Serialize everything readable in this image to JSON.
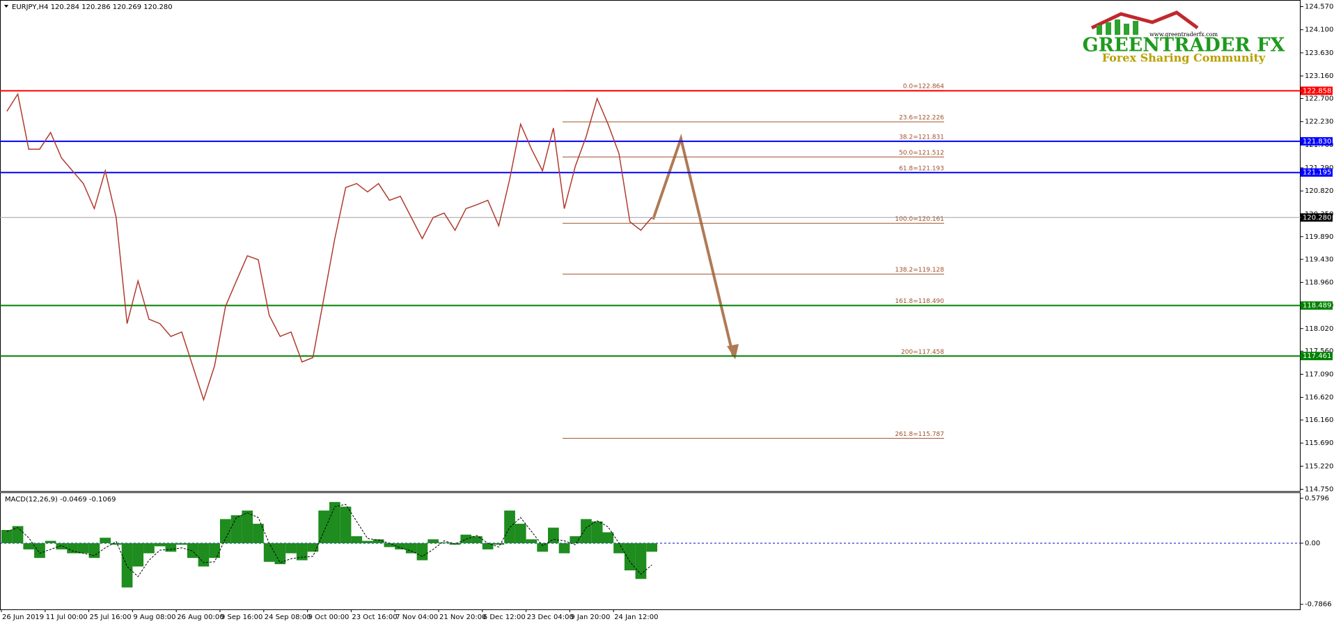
{
  "chart_data": [
    {
      "type": "line",
      "title": "EURJPY,H4  120.284 120.286 120.269 120.280",
      "categories": [
        "26 Jun 2019",
        null,
        null,
        null,
        "11 Jul 00:00",
        null,
        null,
        null,
        "25 Jul 16:00",
        null,
        null,
        null,
        "9 Aug 08:00",
        null,
        null,
        null,
        "26 Aug 00:00",
        null,
        null,
        null,
        "9 Sep 16:00",
        null,
        null,
        null,
        "24 Sep 08:00",
        null,
        null,
        null,
        "9 Oct 00:00",
        null,
        null,
        null,
        "23 Oct 16:00",
        null,
        null,
        null,
        "7 Nov 04:00",
        null,
        null,
        null,
        "21 Nov 20:00",
        null,
        null,
        null,
        "6 Dec 12:00",
        null,
        null,
        null,
        "23 Dec 04:00",
        null,
        null,
        null,
        "9 Jan 20:00",
        null,
        null,
        null,
        "24 Jan 12:00",
        null,
        null,
        null
      ],
      "values": [
        122.44,
        122.79,
        121.67,
        121.67,
        122.01,
        121.49,
        121.23,
        120.97,
        120.46,
        121.23,
        120.28,
        118.12,
        118.99,
        118.21,
        118.12,
        117.86,
        117.95,
        117.26,
        116.57,
        117.26,
        118.47,
        118.99,
        119.5,
        119.42,
        118.29,
        117.86,
        117.95,
        117.34,
        117.43,
        118.64,
        119.85,
        120.89,
        120.97,
        120.8,
        120.97,
        120.63,
        120.71,
        120.28,
        119.85,
        120.28,
        120.37,
        120.02,
        120.46,
        120.54,
        120.63,
        120.11,
        121.06,
        122.18,
        121.67,
        121.23,
        122.1,
        120.46,
        121.32,
        121.93,
        122.7,
        122.18,
        121.58,
        120.19,
        120.02,
        120.28
      ],
      "color": "#b03a2e",
      "ylim": [
        114.715,
        124.691
      ],
      "yticks": [
        {
          "value": 124.57,
          "label": "124.570"
        },
        {
          "value": 124.1,
          "label": "124.100"
        },
        {
          "value": 123.63,
          "label": "123.630"
        },
        {
          "value": 123.16,
          "label": "123.160"
        },
        {
          "value": 122.7,
          "label": "122.700"
        },
        {
          "value": 122.23,
          "label": "122.230"
        },
        {
          "value": 121.76,
          "label": "121.760"
        },
        {
          "value": 121.29,
          "label": "121.290"
        },
        {
          "value": 120.82,
          "label": "120.820"
        },
        {
          "value": 120.35,
          "label": "120.350"
        },
        {
          "value": 119.89,
          "label": "119.890"
        },
        {
          "value": 119.43,
          "label": "119.430"
        },
        {
          "value": 118.96,
          "label": "118.960"
        },
        {
          "value": 118.49,
          "label": "118.490"
        },
        {
          "value": 118.02,
          "label": "118.020"
        },
        {
          "value": 117.56,
          "label": "117.560"
        },
        {
          "value": 117.09,
          "label": "117.090"
        },
        {
          "value": 116.62,
          "label": "116.620"
        },
        {
          "value": 116.16,
          "label": "116.160"
        },
        {
          "value": 115.69,
          "label": "115.690"
        },
        {
          "value": 115.22,
          "label": "115.220"
        },
        {
          "value": 114.75,
          "label": "114.750"
        }
      ],
      "grid": false,
      "hlines": [
        {
          "value": 122.858,
          "color": "#ff0000"
        },
        {
          "value": 121.83,
          "label": "121.830",
          "color": "#0000ff"
        },
        {
          "value": 121.195,
          "color": "#0000ff"
        },
        {
          "value": 120.28,
          "label": "120.280",
          "color": "#000000",
          "line_color": "#a0a0a0"
        },
        {
          "value": 118.489,
          "color": "#008000"
        },
        {
          "value": 117.461,
          "color": "#008000"
        }
      ],
      "fib_color": "#a0522d",
      "fib_levels": [
        {
          "value": 122.864,
          "label": "0.0=122.864"
        },
        {
          "value": 122.226,
          "label": "23.6=122.226"
        },
        {
          "value": 121.831,
          "label": "38.2=121.831"
        },
        {
          "value": 121.512,
          "label": "50.0=121.512"
        },
        {
          "value": 121.193,
          "label": "61.8=121.193"
        },
        {
          "value": 120.161,
          "label": "100.0=120.161"
        },
        {
          "value": 119.128,
          "label": "138.2=119.128"
        },
        {
          "value": 118.49,
          "label": "161.8=118.490"
        },
        {
          "value": 117.458,
          "label": "200=117.458"
        },
        {
          "value": 115.787,
          "label": "261.8=115.787"
        }
      ]
    },
    {
      "type": "macd",
      "title": "MACD(12,26,9) -0.0469 -0.1069",
      "ylim": [
        -0.852,
        0.645
      ],
      "yticks": [
        0.5796,
        {
          "value": 0,
          "label": "0.00"
        },
        -0.7866
      ],
      "series": [
        {
          "type": "bar",
          "color": "#1e8c1e",
          "values": [
            0.17,
            0.22,
            -0.08,
            -0.19,
            0.03,
            -0.08,
            -0.13,
            -0.13,
            -0.19,
            0.07,
            -0.02,
            -0.57,
            -0.3,
            -0.13,
            -0.04,
            -0.11,
            -0.02,
            -0.19,
            -0.3,
            -0.19,
            0.31,
            0.36,
            0.42,
            0.25,
            -0.24,
            -0.27,
            -0.13,
            -0.22,
            -0.11,
            0.42,
            0.53,
            0.47,
            0.09,
            0.03,
            0.05,
            -0.05,
            -0.08,
            -0.13,
            -0.22,
            0.05,
            0.01,
            -0.02,
            0.11,
            0.09,
            -0.08,
            -0.02,
            0.42,
            0.25,
            0.05,
            -0.11,
            0.2,
            -0.13,
            0.09,
            0.31,
            0.28,
            0.14,
            -0.13,
            -0.35,
            -0.46,
            -0.11
          ]
        },
        {
          "type": "line",
          "color": "#000000",
          "values": [
            0.15,
            0.2,
            0.07,
            -0.13,
            -0.08,
            -0.03,
            -0.1,
            -0.13,
            -0.16,
            -0.06,
            0.02,
            -0.3,
            -0.43,
            -0.22,
            -0.09,
            -0.08,
            -0.06,
            -0.1,
            -0.25,
            -0.24,
            0.06,
            0.33,
            0.39,
            0.33,
            0.0,
            -0.25,
            -0.2,
            -0.18,
            -0.17,
            0.15,
            0.47,
            0.5,
            0.28,
            0.06,
            0.04,
            0.0,
            -0.06,
            -0.1,
            -0.17,
            -0.08,
            0.03,
            -0.01,
            0.05,
            0.1,
            0.0,
            -0.05,
            0.2,
            0.33,
            0.15,
            -0.03,
            0.05,
            0.03,
            -0.02,
            0.2,
            0.29,
            0.21,
            0.0,
            -0.24,
            -0.4,
            -0.28
          ]
        }
      ]
    }
  ],
  "logo": {
    "url": "www.greentraderfx.com",
    "name": "GREENTRADER FX",
    "tagline": "Forex Sharing Community"
  }
}
